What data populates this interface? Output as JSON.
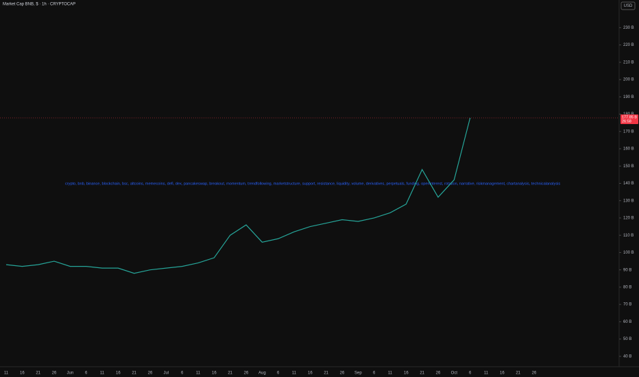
{
  "chart_data": {
    "type": "line",
    "title": "Market Cap BNB, $ · 1h · CRYPTOCAP",
    "currency": "USD",
    "annotation": "crypto, bnb, binance, blockchain, bsc, altcoins, memecoins, defi, dex, pancakeswap, breakout, momentum, trendfollowing, marketstructure, support, resistance, liquidity, volume, derivatives, perpetuals, funding, openinterest, rotation, narrative, riskmanagement, chartanalysis, technicalanalysis",
    "categories": [
      "11",
      "16",
      "21",
      "26",
      "Jun",
      "6",
      "11",
      "16",
      "21",
      "26",
      "Jul",
      "6",
      "11",
      "16",
      "21",
      "26",
      "Aug",
      "6",
      "11",
      "16",
      "21",
      "26",
      "Sep",
      "6",
      "11",
      "16",
      "21",
      "26",
      "Oct",
      "6",
      "11",
      "16",
      "21",
      "26"
    ],
    "series": [
      {
        "name": "BNB market cap",
        "color": "#26a69a",
        "values": [
          93,
          92,
          93,
          95,
          92,
          92,
          91,
          91,
          88,
          90,
          91,
          92,
          94,
          97,
          110,
          116,
          106,
          108,
          112,
          115,
          117,
          119,
          118,
          120,
          123,
          128,
          148,
          132,
          142,
          177.85,
          null,
          null,
          null,
          null
        ]
      }
    ],
    "last_price": {
      "value": 177.85,
      "label": "177.85 B"
    },
    "countdown": "26:58",
    "ylim": [
      34,
      246
    ],
    "yticks": [
      {
        "value": 40,
        "label": "40 B"
      },
      {
        "value": 50,
        "label": "50 B"
      },
      {
        "value": 60,
        "label": "60 B"
      },
      {
        "value": 70,
        "label": "70 B"
      },
      {
        "value": 80,
        "label": "80 B"
      },
      {
        "value": 90,
        "label": "90 B"
      },
      {
        "value": 100,
        "label": "100 B"
      },
      {
        "value": 110,
        "label": "110 B"
      },
      {
        "value": 120,
        "label": "120 B"
      },
      {
        "value": 130,
        "label": "130 B"
      },
      {
        "value": 140,
        "label": "140 B"
      },
      {
        "value": 150,
        "label": "150 B"
      },
      {
        "value": 160,
        "label": "160 B"
      },
      {
        "value": 170,
        "label": "170 B"
      },
      {
        "value": 180,
        "label": "180 B"
      },
      {
        "value": 190,
        "label": "190 B"
      },
      {
        "value": 200,
        "label": "200 B"
      },
      {
        "value": 210,
        "label": "210 B"
      },
      {
        "value": 220,
        "label": "220 B"
      },
      {
        "value": 230,
        "label": "230 B"
      }
    ],
    "grid": false
  }
}
